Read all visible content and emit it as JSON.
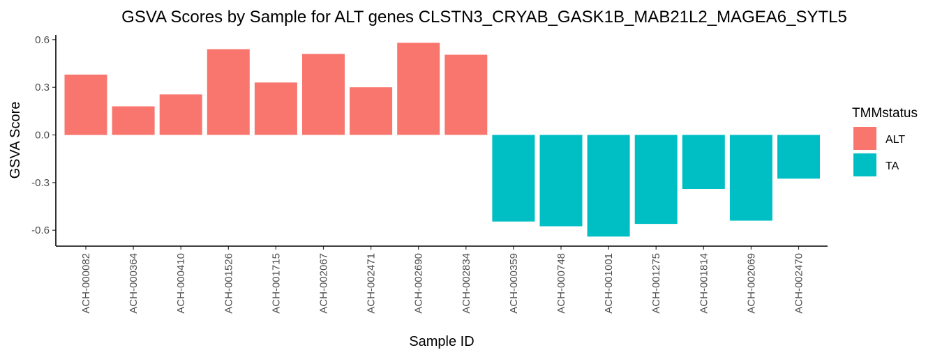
{
  "chart_data": {
    "type": "bar",
    "title": "GSVA Scores by Sample for ALT genes CLSTN3_CRYAB_GASK1B_MAB21L2_MAGEA6_SYTL5",
    "xlabel": "Sample ID",
    "ylabel": "GSVA Score",
    "ylim": [
      -0.7,
      0.63
    ],
    "yticks": [
      "0.6",
      "0.3",
      "0.0",
      "-0.3",
      "-0.6"
    ],
    "ytick_values": [
      0.6,
      0.3,
      0.0,
      -0.3,
      -0.6
    ],
    "grid": false,
    "legend": {
      "title": "TMMstatus",
      "placement": "right",
      "entries": [
        {
          "label": "ALT",
          "color": "#F8766D"
        },
        {
          "label": "TA",
          "color": "#00BFC4"
        }
      ]
    },
    "categories": [
      "ACH-000082",
      "ACH-000364",
      "ACH-000410",
      "ACH-001526",
      "ACH-001715",
      "ACH-002067",
      "ACH-002471",
      "ACH-002690",
      "ACH-002834",
      "ACH-000359",
      "ACH-000748",
      "ACH-001001",
      "ACH-001275",
      "ACH-001814",
      "ACH-002069",
      "ACH-002470"
    ],
    "values": [
      0.38,
      0.18,
      0.255,
      0.54,
      0.33,
      0.51,
      0.3,
      0.58,
      0.505,
      -0.545,
      -0.575,
      -0.64,
      -0.56,
      -0.34,
      -0.54,
      -0.275
    ],
    "groups": [
      "ALT",
      "ALT",
      "ALT",
      "ALT",
      "ALT",
      "ALT",
      "ALT",
      "ALT",
      "ALT",
      "TA",
      "TA",
      "TA",
      "TA",
      "TA",
      "TA",
      "TA"
    ]
  }
}
